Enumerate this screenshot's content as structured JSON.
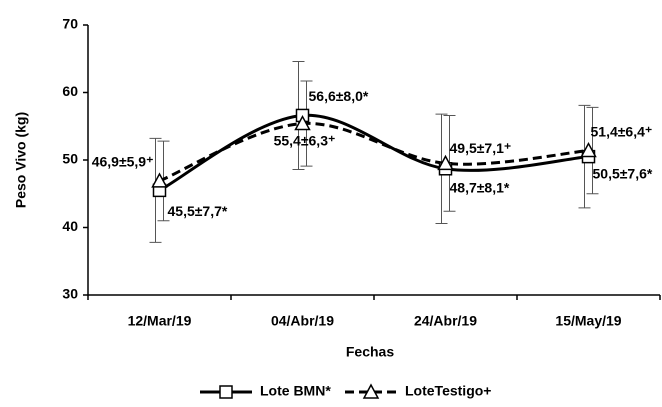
{
  "chart_data": {
    "type": "line",
    "x_label": "Fechas",
    "y_label": "Peso Vivo (kg)",
    "categories": [
      "12/Mar/19",
      "04/Abr/19",
      "24/Abr/19",
      "15/May/19"
    ],
    "series": [
      {
        "name": "Lote BMN*",
        "color": "#000000",
        "dash": "solid",
        "marker": "square",
        "values": [
          45.5,
          56.6,
          48.7,
          50.5
        ],
        "errors": [
          7.7,
          8.0,
          8.1,
          7.6
        ],
        "value_labels": [
          "45,5±7,7*",
          "56,6±8,0*",
          "48,7±8,1*",
          "50,5±7,6*"
        ]
      },
      {
        "name": "LoteTestigo+",
        "color": "#000000",
        "dash": "dashed",
        "marker": "triangle",
        "values": [
          46.9,
          55.4,
          49.5,
          51.4
        ],
        "errors": [
          5.9,
          6.3,
          7.1,
          6.4
        ],
        "value_labels": [
          "46,9±5,9⁺",
          "55,4±6,3⁺",
          "49,5±7,1⁺",
          "51,4±6,4⁺"
        ]
      }
    ],
    "ylim": [
      30,
      70
    ],
    "yticks": [
      30,
      40,
      50,
      60,
      70
    ],
    "legend": "bottom"
  }
}
